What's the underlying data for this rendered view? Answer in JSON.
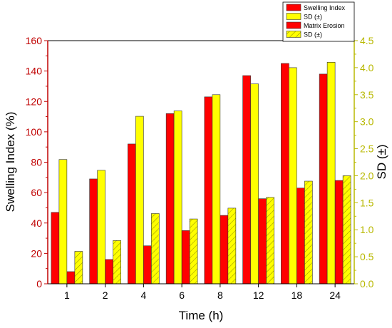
{
  "chart_data": {
    "type": "bar",
    "categories": [
      "1",
      "2",
      "4",
      "6",
      "8",
      "12",
      "18",
      "24"
    ],
    "xlabel": "Time (h)",
    "ylabel_left": "Swelling Index (%)",
    "ylabel_right": "SD (±)",
    "ylim_left": [
      0,
      160
    ],
    "ylim_right": [
      0,
      4.5
    ],
    "yticks_left": [
      "0",
      "20",
      "40",
      "60",
      "80",
      "100",
      "120",
      "140",
      "160"
    ],
    "yticks_right": [
      "0.0",
      "0.5",
      "1.0",
      "1.5",
      "2.0",
      "2.5",
      "3.0",
      "3.5",
      "4.0",
      "4.5"
    ],
    "grid": false,
    "legend_position": "top-right",
    "series": [
      {
        "name": "Swelling Index",
        "axis": "left",
        "color": "#ff0000",
        "hatch": false,
        "values": [
          47,
          69,
          92,
          112,
          123,
          137,
          145,
          138
        ]
      },
      {
        "name": "SD (±)",
        "axis": "right",
        "color": "#ffff00",
        "hatch": false,
        "values": [
          2.3,
          2.1,
          3.1,
          3.2,
          3.5,
          3.7,
          4.0,
          4.1
        ]
      },
      {
        "name": "Matrix Erosion",
        "axis": "left",
        "color": "#ff0000",
        "hatch": false,
        "values": [
          8,
          16,
          25,
          35,
          45,
          56,
          63,
          68
        ]
      },
      {
        "name": "SD (±)",
        "axis": "right",
        "color": "#ffff00",
        "hatch": true,
        "values": [
          0.6,
          0.8,
          1.3,
          1.2,
          1.4,
          1.6,
          1.9,
          2.0
        ]
      }
    ]
  },
  "colors": {
    "left_axis": "#c00000",
    "right_axis": "#b8b800",
    "bar_stroke": "#333333"
  }
}
